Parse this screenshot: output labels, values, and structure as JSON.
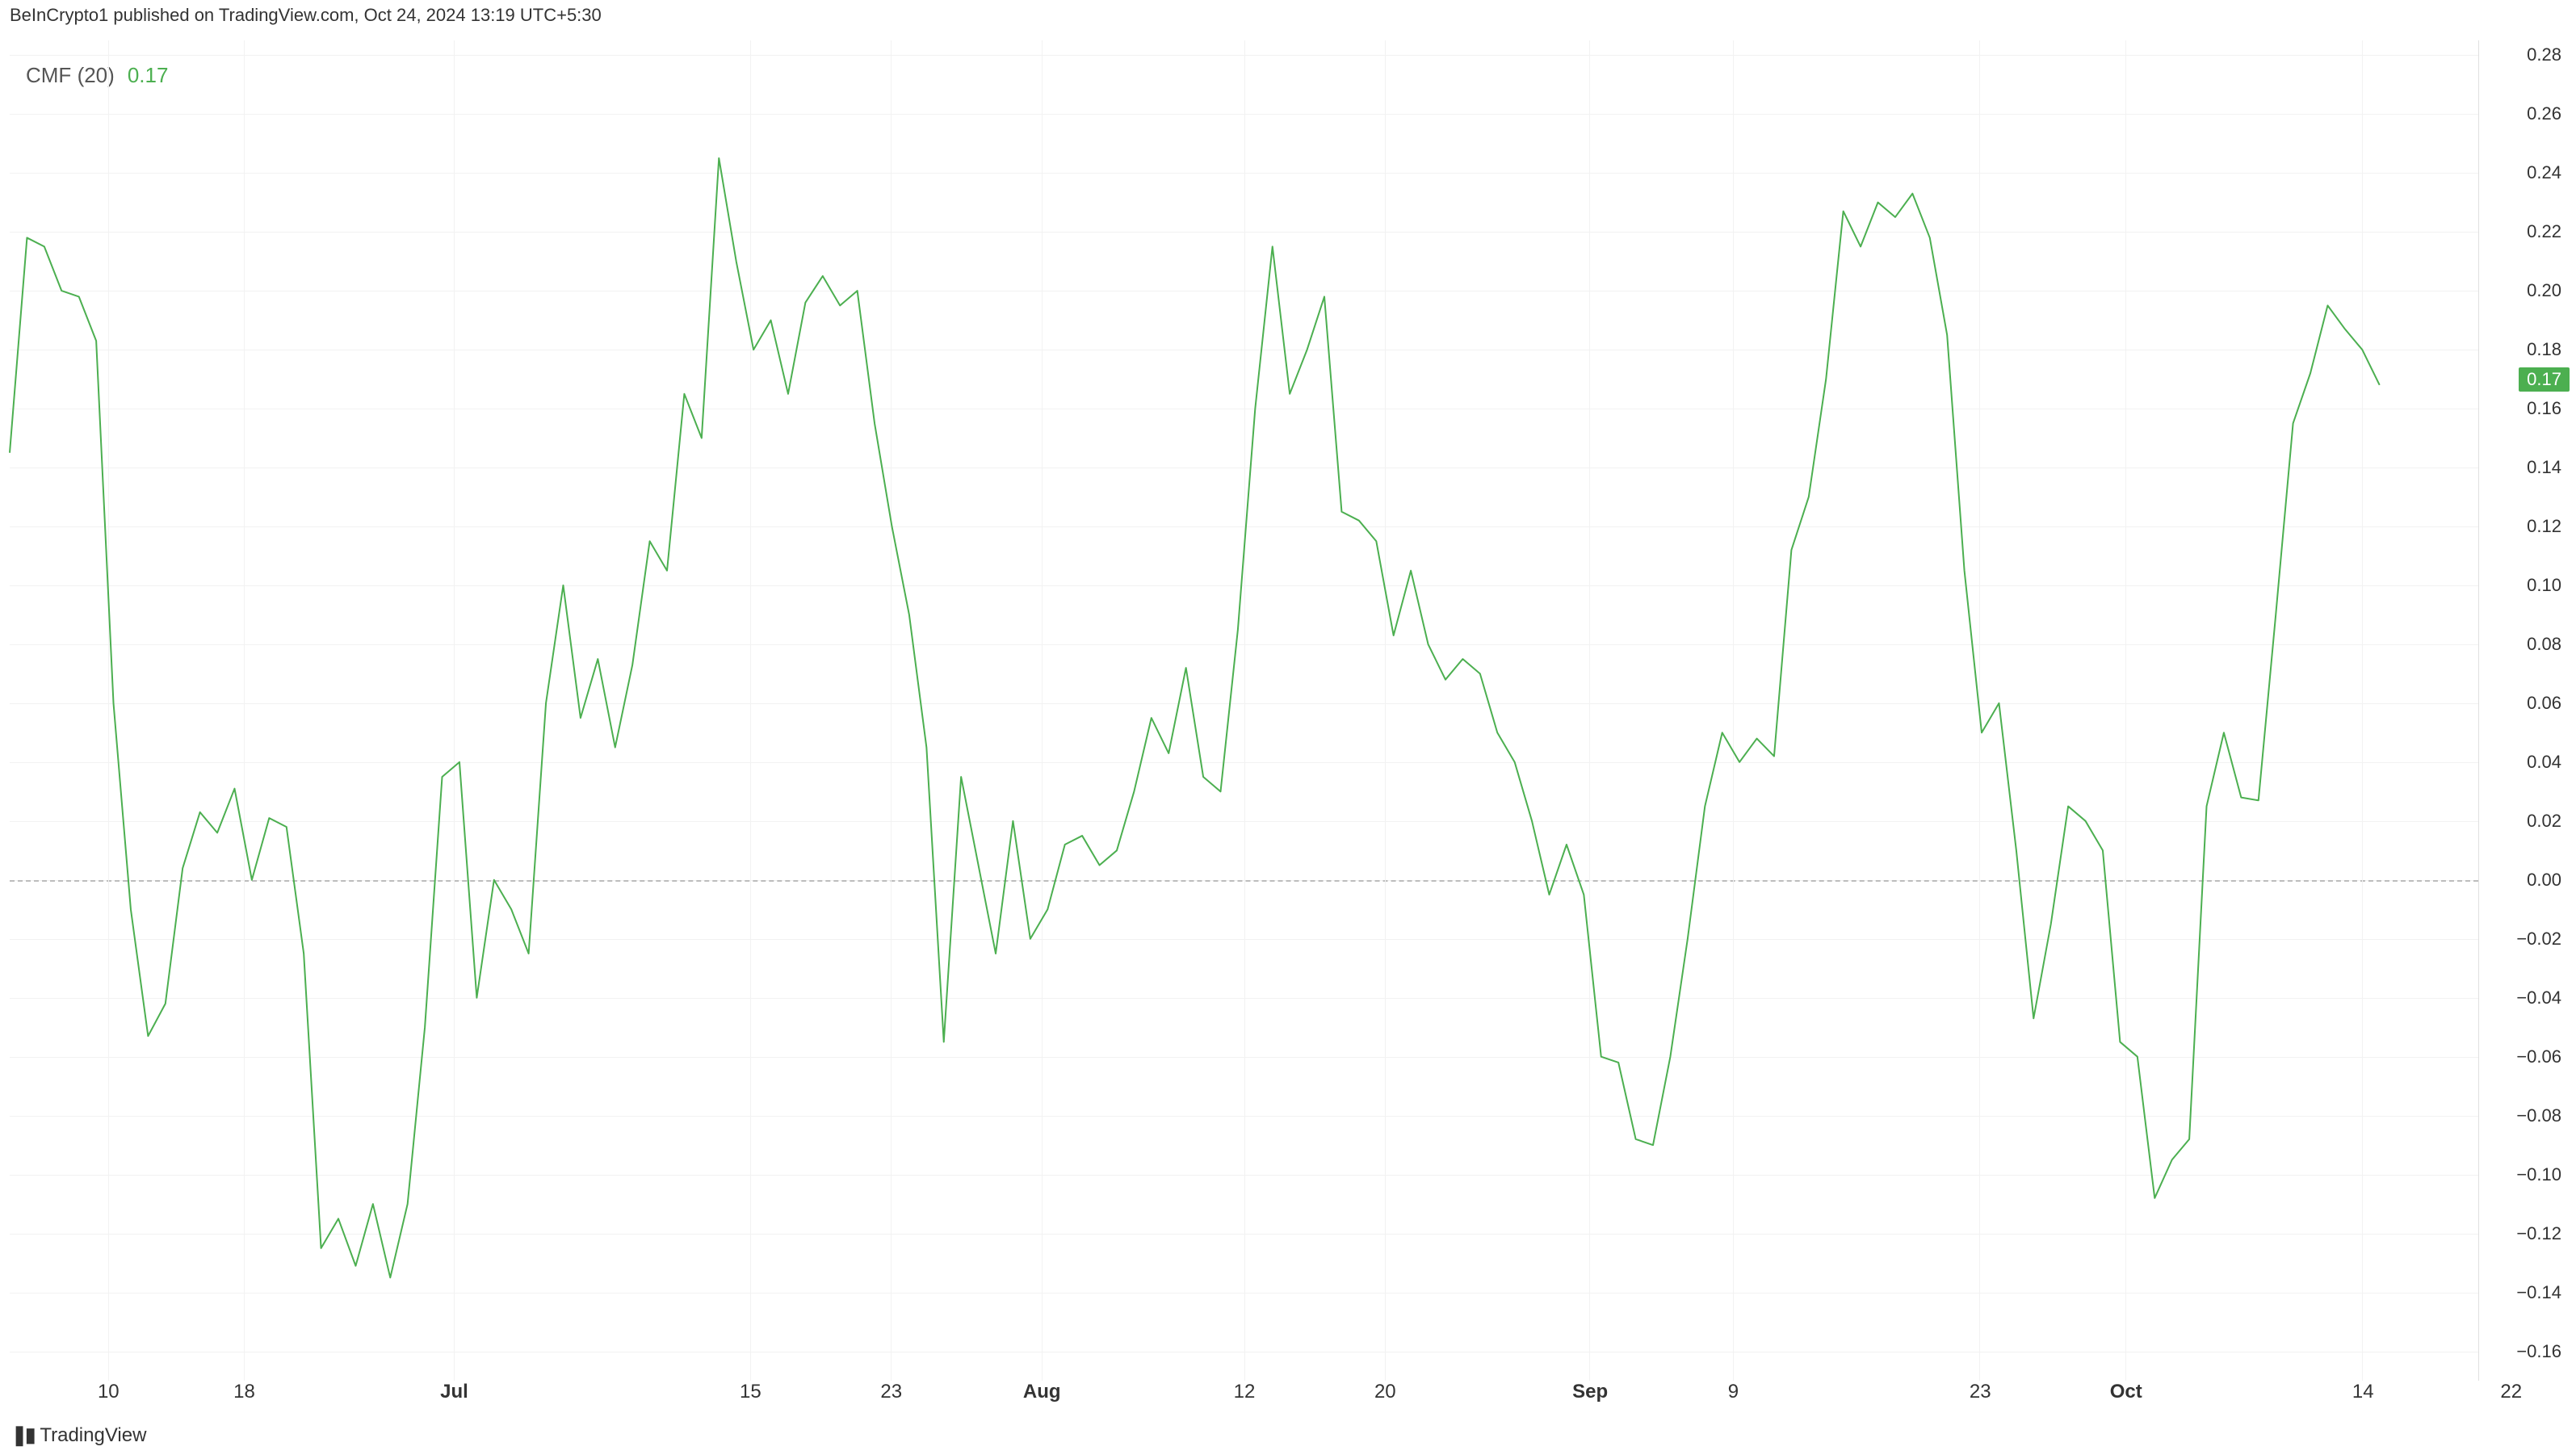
{
  "header": {
    "text": "BeInCrypto1 published on TradingView.com, Oct 24, 2024 13:19 UTC+5:30"
  },
  "indicator": {
    "name": "CMF",
    "params": "(20)",
    "value": "0.17"
  },
  "footer": {
    "logo_glyph": "❚▮",
    "brand": "TradingView"
  },
  "chart": {
    "type": "line",
    "line_color": "#4caf50",
    "line_width": 2,
    "background_color": "#ffffff",
    "grid_color": "#f2f2f2",
    "zero_line_color": "#bdbdbd",
    "ylim": [
      -0.17,
      0.285
    ],
    "y_ticks": [
      0.28,
      0.26,
      0.24,
      0.22,
      0.2,
      0.18,
      0.16,
      0.14,
      0.12,
      0.1,
      0.08,
      0.06,
      0.04,
      0.02,
      0.0,
      -0.02,
      -0.04,
      -0.06,
      -0.08,
      -0.1,
      -0.12,
      -0.14,
      -0.16
    ],
    "y_tick_labels": [
      "0.28",
      "0.26",
      "0.24",
      "0.22",
      "0.20",
      "0.18",
      "0.16",
      "0.14",
      "0.12",
      "0.10",
      "0.08",
      "0.06",
      "0.04",
      "0.02",
      "0.00",
      "−0.02",
      "−0.04",
      "−0.06",
      "−0.08",
      "−0.10",
      "−0.12",
      "−0.14",
      "−0.16"
    ],
    "x_ticks": [
      {
        "pos": 0.04,
        "label": "10",
        "bold": false
      },
      {
        "pos": 0.095,
        "label": "18",
        "bold": false
      },
      {
        "pos": 0.18,
        "label": "Jul",
        "bold": true
      },
      {
        "pos": 0.3,
        "label": "15",
        "bold": false
      },
      {
        "pos": 0.357,
        "label": "23",
        "bold": false
      },
      {
        "pos": 0.418,
        "label": "Aug",
        "bold": true
      },
      {
        "pos": 0.5,
        "label": "12",
        "bold": false
      },
      {
        "pos": 0.557,
        "label": "20",
        "bold": false
      },
      {
        "pos": 0.64,
        "label": "Sep",
        "bold": true
      },
      {
        "pos": 0.698,
        "label": "9",
        "bold": false
      },
      {
        "pos": 0.798,
        "label": "23",
        "bold": false
      },
      {
        "pos": 0.857,
        "label": "Oct",
        "bold": true
      },
      {
        "pos": 0.953,
        "label": "14",
        "bold": false
      },
      {
        "pos": 1.013,
        "label": "22",
        "bold": false
      }
    ],
    "current_value": 0.17,
    "current_label": "0.17",
    "badge_bg": "#4caf50",
    "fontsize_ticks": 22,
    "data": [
      0.145,
      0.218,
      0.215,
      0.2,
      0.198,
      0.183,
      0.06,
      -0.01,
      -0.053,
      -0.042,
      0.004,
      0.023,
      0.016,
      0.031,
      0.0,
      0.021,
      0.018,
      -0.025,
      -0.125,
      -0.115,
      -0.131,
      -0.11,
      -0.135,
      -0.11,
      -0.05,
      0.035,
      0.04,
      -0.04,
      0.0,
      -0.01,
      -0.025,
      0.06,
      0.1,
      0.055,
      0.075,
      0.045,
      0.073,
      0.115,
      0.105,
      0.165,
      0.15,
      0.245,
      0.21,
      0.18,
      0.19,
      0.165,
      0.196,
      0.205,
      0.195,
      0.2,
      0.155,
      0.12,
      0.09,
      0.045,
      -0.055,
      0.035,
      0.005,
      -0.025,
      0.02,
      -0.02,
      -0.01,
      0.012,
      0.015,
      0.005,
      0.01,
      0.03,
      0.055,
      0.043,
      0.072,
      0.035,
      0.03,
      0.085,
      0.16,
      0.215,
      0.165,
      0.18,
      0.198,
      0.125,
      0.122,
      0.115,
      0.083,
      0.105,
      0.08,
      0.068,
      0.075,
      0.07,
      0.05,
      0.04,
      0.02,
      -0.005,
      0.012,
      -0.005,
      -0.06,
      -0.062,
      -0.088,
      -0.09,
      -0.06,
      -0.02,
      0.025,
      0.05,
      0.04,
      0.048,
      0.042,
      0.112,
      0.13,
      0.17,
      0.227,
      0.215,
      0.23,
      0.225,
      0.233,
      0.218,
      0.185,
      0.105,
      0.05,
      0.06,
      0.01,
      -0.047,
      -0.015,
      0.025,
      0.02,
      0.01,
      -0.055,
      -0.06,
      -0.108,
      -0.095,
      -0.088,
      0.025,
      0.05,
      0.028,
      0.027,
      0.09,
      0.155,
      0.172,
      0.195,
      0.187,
      0.18,
      0.168
    ]
  }
}
